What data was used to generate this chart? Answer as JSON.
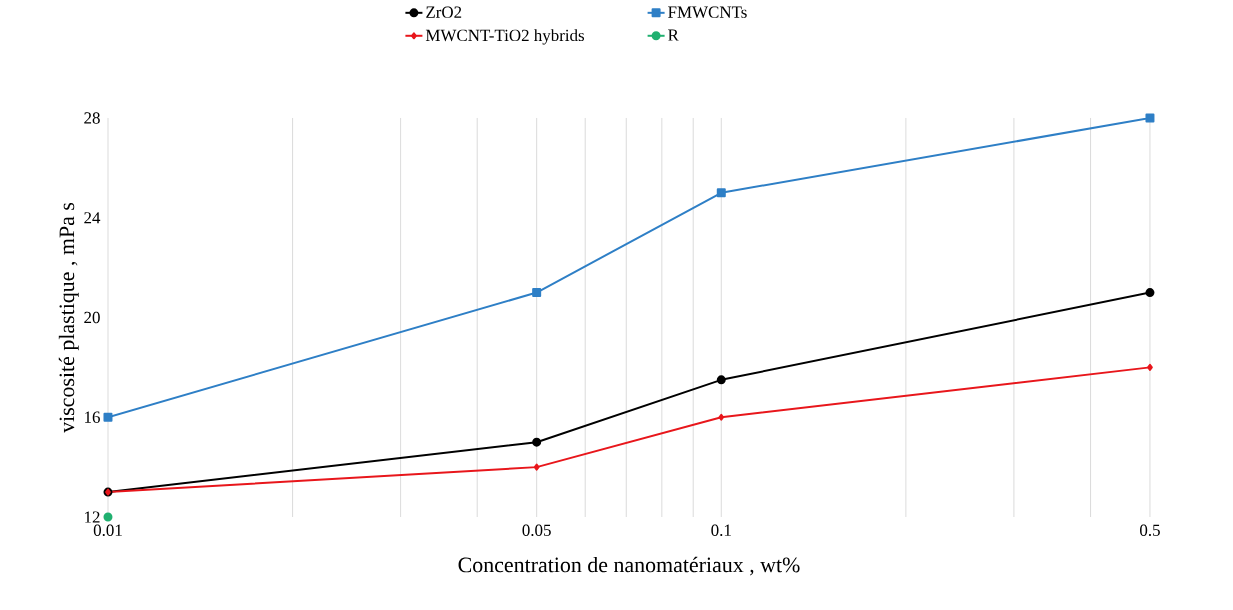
{
  "chart_data": {
    "type": "line",
    "xlabel": "Concentration de nanomatériaux ,  wt%",
    "ylabel": "viscosité plastique , mPa  s",
    "log": "x",
    "grid": "x",
    "legend": "top",
    "xlim": [
      0.01,
      0.5
    ],
    "ylim": [
      12,
      28
    ],
    "xticks": [
      {
        "value": 0.01,
        "label": "0.01"
      },
      {
        "value": 0.02,
        "label": null
      },
      {
        "value": 0.03,
        "label": null
      },
      {
        "value": 0.04,
        "label": null
      },
      {
        "value": 0.05,
        "label": "0.05"
      },
      {
        "value": 0.06,
        "label": null
      },
      {
        "value": 0.07,
        "label": null
      },
      {
        "value": 0.08,
        "label": null
      },
      {
        "value": 0.09,
        "label": null
      },
      {
        "value": 0.1,
        "label": "0.1"
      },
      {
        "value": 0.2,
        "label": null
      },
      {
        "value": 0.3,
        "label": null
      },
      {
        "value": 0.4,
        "label": null
      },
      {
        "value": 0.5,
        "label": "0.5"
      }
    ],
    "yticks": [
      12,
      16,
      20,
      24,
      28
    ],
    "x": [
      0.01,
      0.05,
      0.1,
      0.5
    ],
    "series": [
      {
        "name": "ZrO2",
        "color": "#000000",
        "marker": "circle",
        "values": [
          13,
          15,
          17.5,
          21
        ]
      },
      {
        "name": "FMWCNTs",
        "color": "#2e7fc6",
        "marker": "square",
        "values": [
          16,
          21,
          25,
          28
        ]
      },
      {
        "name": "MWCNT-TiO2 hybrids",
        "color": "#e8161b",
        "marker": "diamond",
        "values": [
          13,
          14,
          16,
          18
        ]
      },
      {
        "name": "R",
        "color": "#20b070",
        "marker": "circle",
        "x": [
          0.01
        ],
        "values": [
          12
        ]
      }
    ]
  }
}
